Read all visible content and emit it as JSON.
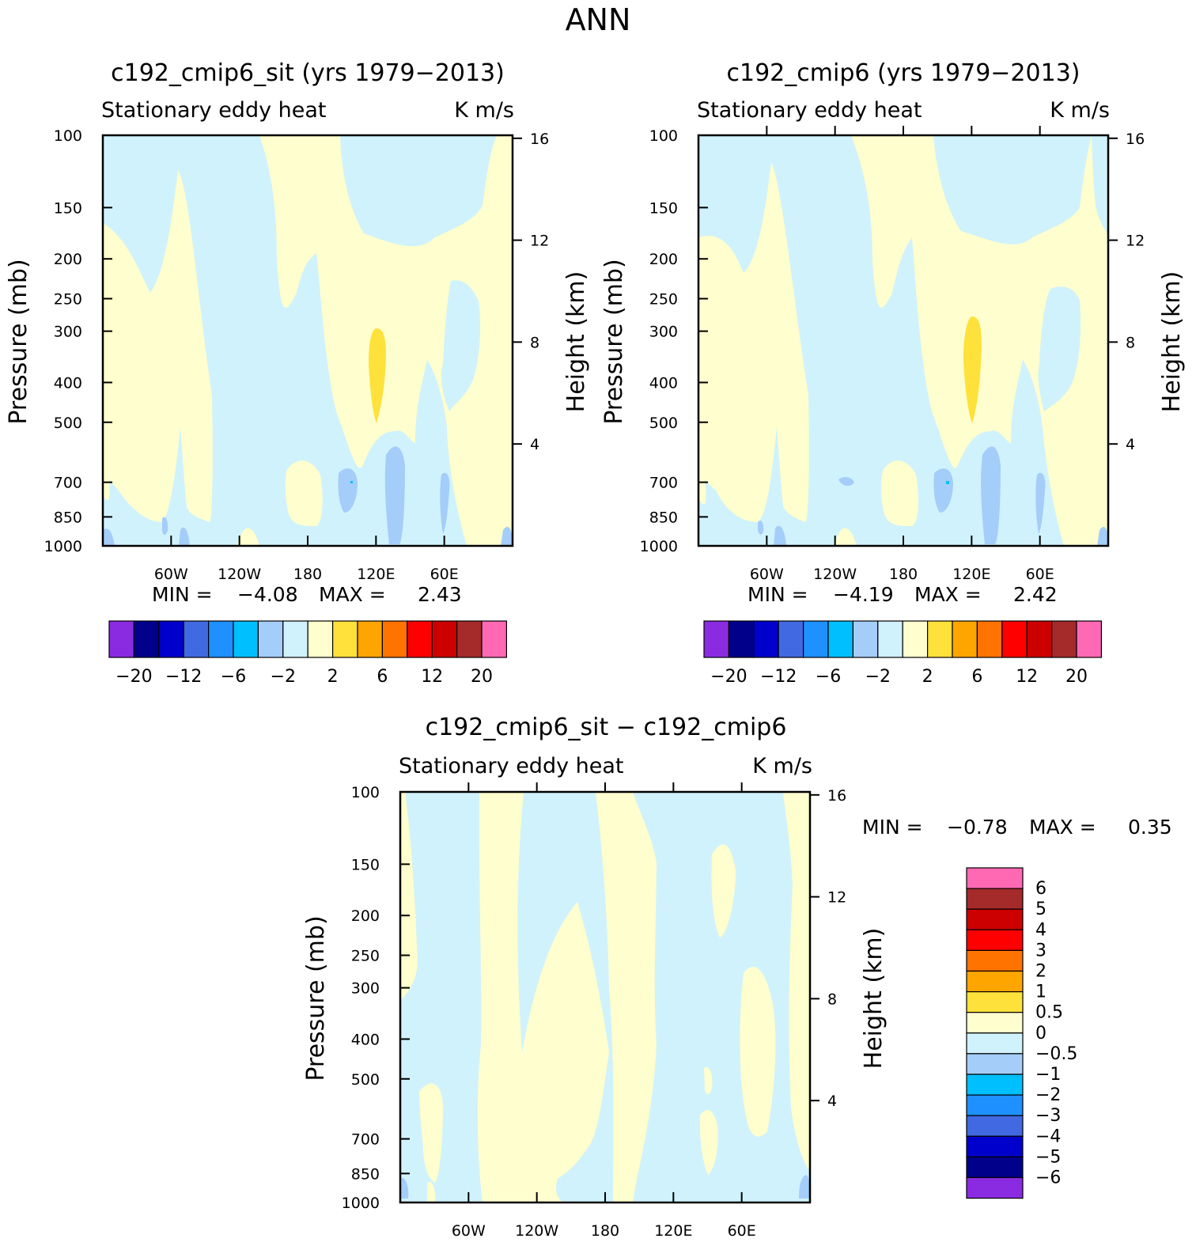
{
  "page_title": "ANN",
  "chart_data": [
    {
      "type": "contour",
      "title": "c192_cmip6_sit (yrs 1979−2013)",
      "subtitle_left": "Stationary eddy heat",
      "subtitle_right": "K m/s",
      "ylabel_left": "Pressure (mb)",
      "ylabel_right": "Height (km)",
      "y_ticks": [
        "100",
        "150",
        "200",
        "250",
        "300",
        "400",
        "500",
        "700",
        "850",
        "1000"
      ],
      "y_right_ticks": [
        "16",
        "12",
        "8",
        "4"
      ],
      "x_ticks": [
        "60W",
        "120W",
        "180",
        "120E",
        "60E"
      ],
      "min_label": "MIN =",
      "min_value": "−4.08",
      "max_label": "MAX =",
      "max_value": "2.43",
      "colorbar_labels": [
        "−20",
        "−12",
        "−6",
        "−2",
        "2",
        "6",
        "12",
        "20"
      ]
    },
    {
      "type": "contour",
      "title": "c192_cmip6 (yrs 1979−2013)",
      "subtitle_left": "Stationary eddy heat",
      "subtitle_right": "K m/s",
      "ylabel_left": "Pressure (mb)",
      "ylabel_right": "Height (km)",
      "y_ticks": [
        "100",
        "150",
        "200",
        "250",
        "300",
        "400",
        "500",
        "700",
        "850",
        "1000"
      ],
      "y_right_ticks": [
        "16",
        "12",
        "8",
        "4"
      ],
      "x_ticks": [
        "60W",
        "120W",
        "180",
        "120E",
        "60E"
      ],
      "min_label": "MIN =",
      "min_value": "−4.19",
      "max_label": "MAX =",
      "max_value": "2.42",
      "colorbar_labels": [
        "−20",
        "−12",
        "−6",
        "−2",
        "2",
        "6",
        "12",
        "20"
      ]
    },
    {
      "type": "contour",
      "title": "c192_cmip6_sit − c192_cmip6",
      "subtitle_left": "Stationary eddy heat",
      "subtitle_right": "K m/s",
      "ylabel_left": "Pressure (mb)",
      "ylabel_right": "Height (km)",
      "y_ticks": [
        "100",
        "150",
        "200",
        "250",
        "300",
        "400",
        "500",
        "700",
        "850",
        "1000"
      ],
      "y_right_ticks": [
        "16",
        "12",
        "8",
        "4"
      ],
      "x_ticks": [
        "60W",
        "120W",
        "180",
        "120E",
        "60E"
      ],
      "min_label": "MIN =",
      "min_value": "−0.78",
      "max_label": "MAX =",
      "max_value": "0.35",
      "colorbar_labels": [
        "6",
        "5",
        "4",
        "3",
        "2",
        "1",
        "0.5",
        "0",
        "−0.5",
        "−1",
        "−2",
        "−3",
        "−4",
        "−5",
        "−6"
      ]
    }
  ],
  "colors": {
    "palette": [
      "#8a2be2",
      "#00008b",
      "#0000cd",
      "#4169e1",
      "#1e90ff",
      "#00bfff",
      "#a4cdfa",
      "#d0f2fc",
      "#fefece",
      "#fee13a",
      "#ffa500",
      "#ff7300",
      "#ff0000",
      "#cd0000",
      "#a52a2a",
      "#ff69b4"
    ],
    "neg_light": "#d0f2fc",
    "neg_mid": "#a4cdfa",
    "neg_dark": "#5ba0f2",
    "pos_light": "#fefece",
    "pos_mid": "#fee13a"
  }
}
